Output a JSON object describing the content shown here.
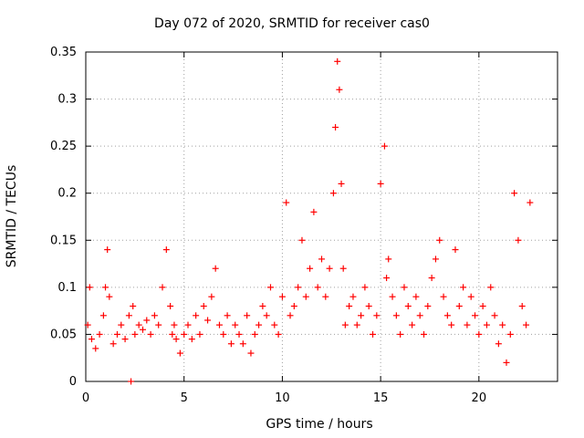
{
  "chart_data": {
    "type": "scatter",
    "title": "Day 072 of 2020, SRMTID for receiver cas0",
    "xlabel": "GPS time / hours",
    "ylabel": "SRMTID / TECUs",
    "xlim": [
      0,
      24
    ],
    "ylim": [
      0,
      0.35
    ],
    "grid": true,
    "xticks": [
      0,
      5,
      10,
      15,
      20
    ],
    "yticks": [
      0,
      0.05,
      0.1,
      0.15,
      0.2,
      0.25,
      0.3,
      0.35
    ],
    "xtick_labels": [
      "0",
      "5",
      "10",
      "15",
      "20"
    ],
    "ytick_labels": [
      "0",
      "0.05",
      "0.1",
      "0.15",
      "0.2",
      "0.25",
      "0.3",
      "0.35"
    ],
    "marker": "+",
    "series": [
      {
        "name": "SRMTID cas0",
        "color": "#ff0000",
        "x": [
          0.1,
          0.2,
          0.3,
          0.5,
          0.7,
          0.9,
          1.0,
          1.1,
          1.2,
          1.4,
          1.6,
          1.8,
          2.0,
          2.2,
          2.3,
          2.4,
          2.5,
          2.7,
          2.9,
          3.1,
          3.3,
          3.5,
          3.7,
          3.9,
          4.1,
          4.3,
          4.4,
          4.5,
          4.6,
          4.8,
          5.0,
          5.2,
          5.4,
          5.6,
          5.8,
          6.0,
          6.2,
          6.4,
          6.6,
          6.8,
          7.0,
          7.2,
          7.4,
          7.6,
          7.8,
          8.0,
          8.2,
          8.4,
          8.6,
          8.8,
          9.0,
          9.2,
          9.4,
          9.6,
          9.8,
          10.0,
          10.2,
          10.4,
          10.6,
          10.8,
          11.0,
          11.2,
          11.4,
          11.6,
          11.8,
          12.0,
          12.2,
          12.4,
          12.6,
          12.7,
          12.8,
          12.9,
          13.0,
          13.1,
          13.2,
          13.4,
          13.6,
          13.8,
          14.0,
          14.2,
          14.4,
          14.6,
          14.8,
          15.0,
          15.2,
          15.3,
          15.4,
          15.6,
          15.8,
          16.0,
          16.2,
          16.4,
          16.6,
          16.8,
          17.0,
          17.2,
          17.4,
          17.6,
          17.8,
          18.0,
          18.2,
          18.4,
          18.6,
          18.8,
          19.0,
          19.2,
          19.4,
          19.6,
          19.8,
          20.0,
          20.2,
          20.4,
          20.6,
          20.8,
          21.0,
          21.2,
          21.4,
          21.6,
          21.8,
          22.0,
          22.2,
          22.4,
          22.6
        ],
        "values": [
          0.06,
          0.1,
          0.045,
          0.035,
          0.05,
          0.07,
          0.1,
          0.14,
          0.09,
          0.04,
          0.05,
          0.06,
          0.045,
          0.07,
          0.0,
          0.08,
          0.05,
          0.06,
          0.055,
          0.065,
          0.05,
          0.07,
          0.06,
          0.1,
          0.14,
          0.08,
          0.05,
          0.06,
          0.045,
          0.03,
          0.05,
          0.06,
          0.045,
          0.07,
          0.05,
          0.08,
          0.065,
          0.09,
          0.12,
          0.06,
          0.05,
          0.07,
          0.04,
          0.06,
          0.05,
          0.04,
          0.07,
          0.03,
          0.05,
          0.06,
          0.08,
          0.07,
          0.1,
          0.06,
          0.05,
          0.09,
          0.19,
          0.07,
          0.08,
          0.1,
          0.15,
          0.09,
          0.12,
          0.18,
          0.1,
          0.13,
          0.09,
          0.12,
          0.2,
          0.27,
          0.34,
          0.31,
          0.21,
          0.12,
          0.06,
          0.08,
          0.09,
          0.06,
          0.07,
          0.1,
          0.08,
          0.05,
          0.07,
          0.21,
          0.25,
          0.11,
          0.13,
          0.09,
          0.07,
          0.05,
          0.1,
          0.08,
          0.06,
          0.09,
          0.07,
          0.05,
          0.08,
          0.11,
          0.13,
          0.15,
          0.09,
          0.07,
          0.06,
          0.14,
          0.08,
          0.1,
          0.06,
          0.09,
          0.07,
          0.05,
          0.08,
          0.06,
          0.1,
          0.07,
          0.04,
          0.06,
          0.02,
          0.05,
          0.2,
          0.15,
          0.08,
          0.06,
          0.19
        ]
      }
    ]
  }
}
